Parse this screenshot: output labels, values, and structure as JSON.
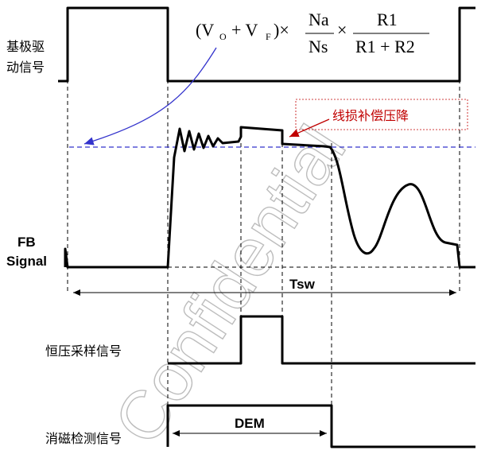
{
  "signals": {
    "gate_drive": "基极驱动信号",
    "gate_drive_line1": "基极驱",
    "gate_drive_line2": "动信号",
    "fb_line1": "FB",
    "fb_line2": "Signal",
    "cv_sample": "恒压采样信号",
    "demag": "消磁检测信号"
  },
  "annotations": {
    "line_drop": "线损补偿压降",
    "tsw": "Tsw",
    "dem": "DEM"
  },
  "formula": {
    "open_paren": "(V",
    "sub_o": "O",
    "plus": "+ V",
    "sub_f": "F",
    "close_times": ")×",
    "na": "Na",
    "ns": "Ns",
    "times": "×",
    "r1": "R1",
    "r1_plus_r2": "R1 + R2"
  },
  "watermark": "Confidential",
  "colors": {
    "signal": "#000000",
    "reference_line": "#3333cc",
    "annotation": "#c00000",
    "watermark": "#bdbdbd"
  }
}
